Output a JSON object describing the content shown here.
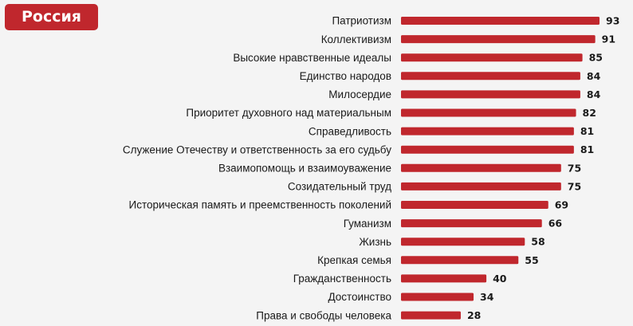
{
  "header": {
    "badge_label": "Россия"
  },
  "colors": {
    "bar": "#c0272d",
    "badge": "#c0272d",
    "background": "#f4f4f4",
    "text": "#1a1a1a"
  },
  "chart_data": {
    "type": "bar",
    "orientation": "horizontal",
    "title": "",
    "xlabel": "",
    "ylabel": "",
    "grid": false,
    "categories": [
      "Патриотизм",
      "Коллективизм",
      "Высокие нравственные идеалы",
      "Единство народов",
      "Милосердие",
      "Приоритет духовного над материальным",
      "Справедливость",
      "Служение Отечеству и ответственность за его судьбу",
      "Взаимопомощь и взаимоуважение",
      "Созидательный труд",
      "Историческая память и преемственность поколений",
      "Гуманизм",
      "Жизнь",
      "Крепкая семья",
      "Гражданственность",
      "Достоинство",
      "Права и свободы человека"
    ],
    "values": [
      93,
      91,
      85,
      84,
      84,
      82,
      81,
      81,
      75,
      75,
      69,
      66,
      58,
      55,
      40,
      34,
      28
    ],
    "xlim": [
      0,
      93
    ]
  }
}
